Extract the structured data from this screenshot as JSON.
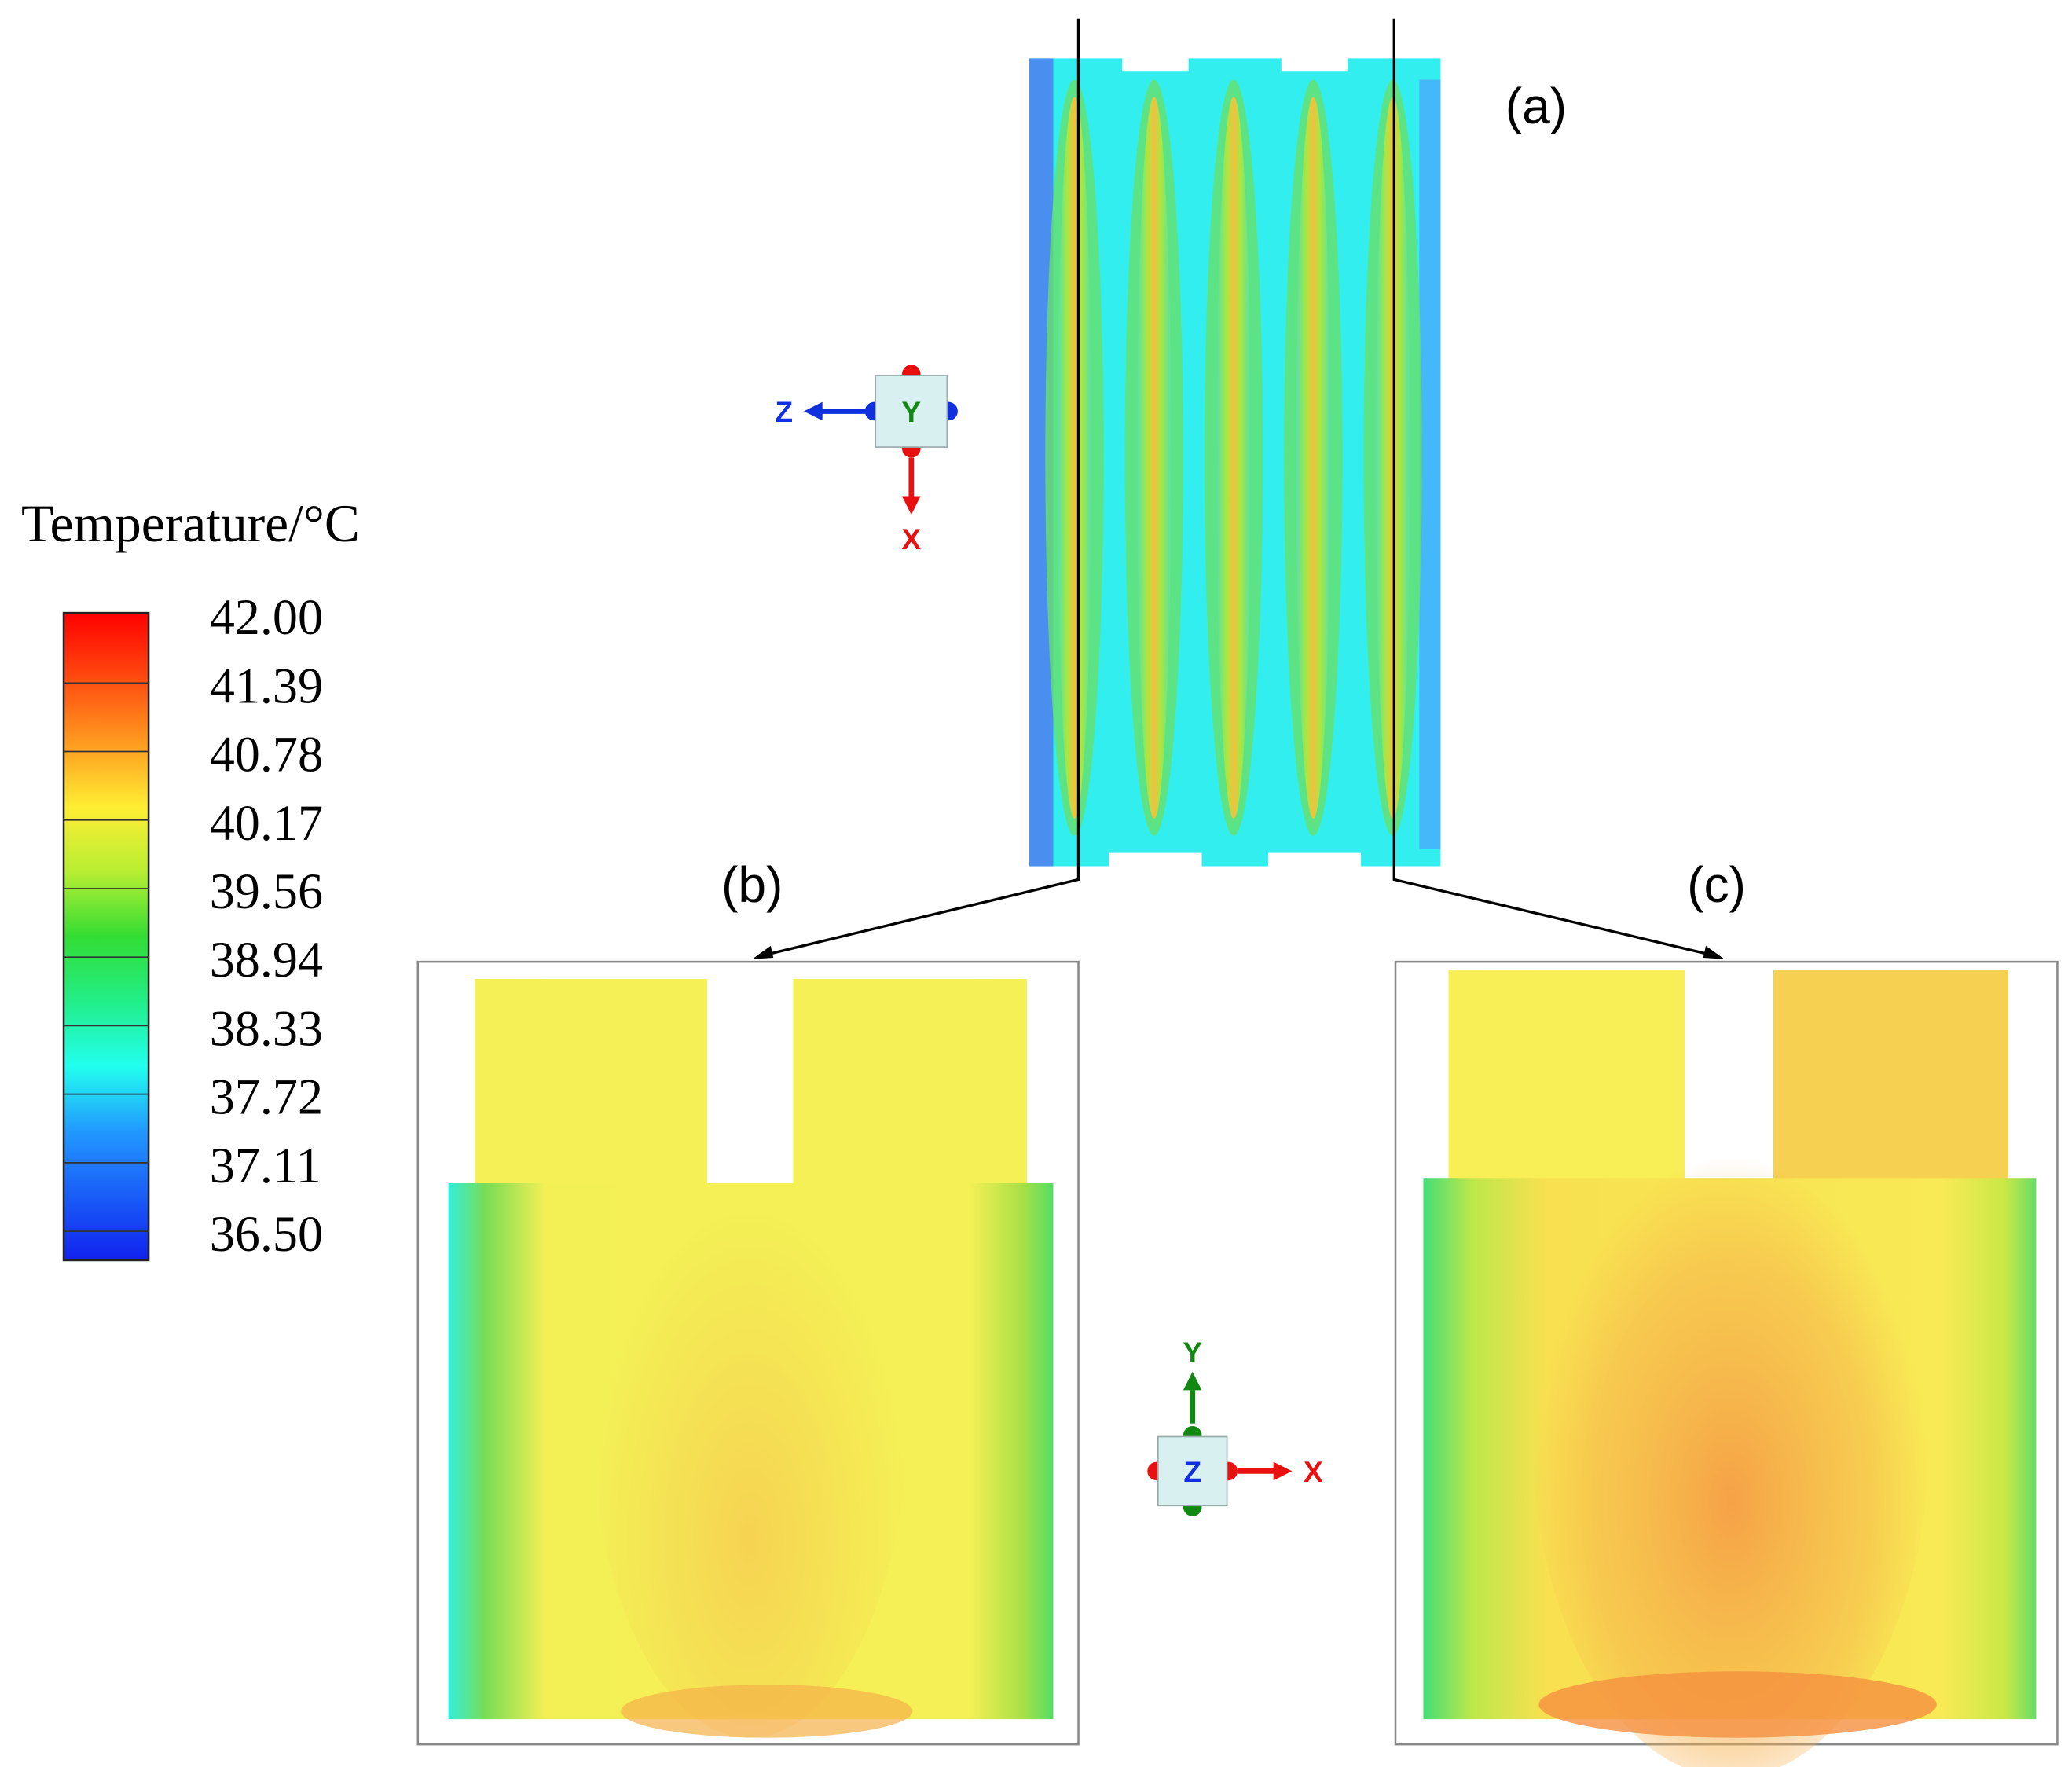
{
  "legend": {
    "title": "Temperature/°C",
    "labels": [
      "42.00",
      "41.39",
      "40.78",
      "40.17",
      "39.56",
      "38.94",
      "38.33",
      "37.72",
      "37.11",
      "36.50"
    ]
  },
  "panels": {
    "a": "(a)",
    "b": "(b)",
    "c": "(c)"
  },
  "triads": [
    {
      "center": "Y",
      "horizontal": "Z",
      "vertical": "X"
    },
    {
      "center": "Z",
      "horizontal": "X",
      "vertical": "Y"
    }
  ]
}
